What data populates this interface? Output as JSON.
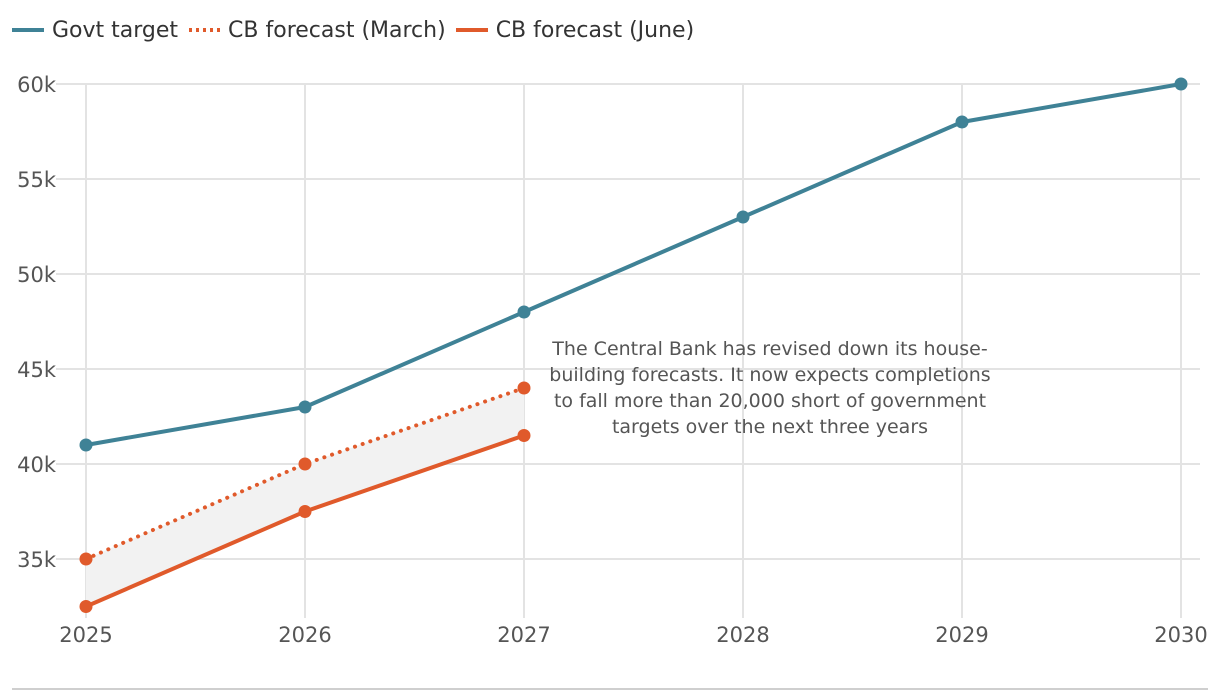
{
  "chart_data": {
    "type": "line",
    "x": [
      2025,
      2026,
      2027,
      2028,
      2029,
      2030
    ],
    "xlim": [
      2025,
      2030
    ],
    "ylim": [
      32500,
      61000
    ],
    "yticks": [
      35000,
      40000,
      45000,
      50000,
      55000,
      60000
    ],
    "ytick_labels": [
      "35k",
      "40k",
      "45k",
      "50k",
      "55k",
      "60k"
    ],
    "xtick_labels": [
      "2025",
      "2026",
      "2027",
      "2028",
      "2029",
      "2030"
    ],
    "grid": true,
    "legend_position": "top-left",
    "series": [
      {
        "name": "Govt target",
        "color": "#3f8296",
        "style": "solid",
        "values": [
          41000,
          43000,
          48000,
          53000,
          58000,
          60000
        ]
      },
      {
        "name": "CB forecast (March)",
        "color": "#e05a2b",
        "style": "dotted",
        "values": [
          35000,
          40000,
          44000,
          null,
          null,
          null
        ]
      },
      {
        "name": "CB forecast (June)",
        "color": "#e05a2b",
        "style": "solid",
        "values": [
          32500,
          37500,
          41500,
          null,
          null,
          null
        ]
      }
    ],
    "shaded_band": {
      "between": [
        "CB forecast (March)",
        "CB forecast (June)"
      ],
      "color": "#f2f2f2"
    },
    "annotation": "The Central Bank has revised down its house-building forecasts. It now expects completions to fall more than 20,000 short of government targets over the next three years"
  }
}
